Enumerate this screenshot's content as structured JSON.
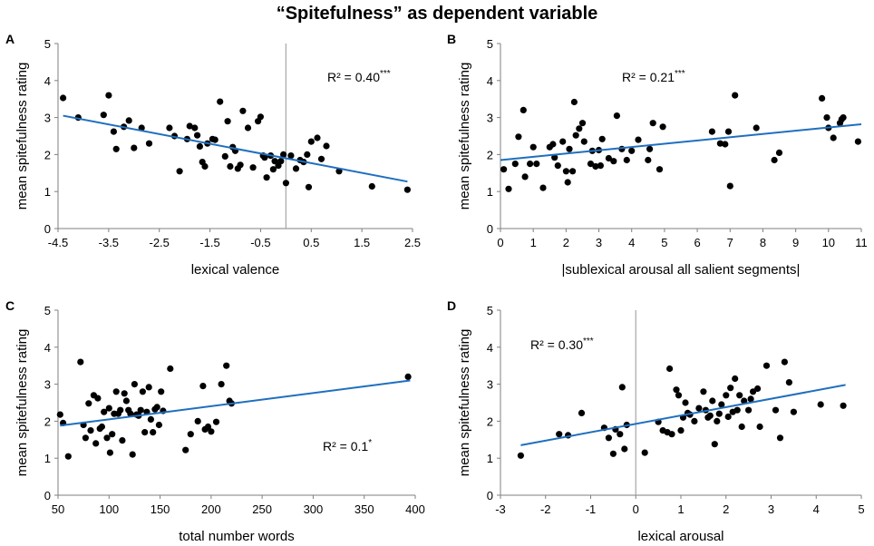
{
  "title": "“Spitefulness” as dependent variable",
  "chart_data": [
    {
      "panel": "A",
      "type": "scatter",
      "xlabel": "lexical valence",
      "ylabel": "mean spitefulness rating",
      "xlim": [
        -4.5,
        2.5
      ],
      "ylim": [
        0,
        5
      ],
      "xticks": [
        -4.5,
        -3.5,
        -2.5,
        -1.5,
        -0.5,
        0.5,
        1.5,
        2.5
      ],
      "xtick_labels": [
        "-4.5",
        "-3.5",
        "-2.5",
        "-1.5",
        "-0.5",
        "0.5",
        "1.5",
        "2.5"
      ],
      "yticks": [
        0,
        1,
        2,
        3,
        4,
        5
      ],
      "ytick_labels": [
        "0",
        "1",
        "2",
        "3",
        "4",
        "5"
      ],
      "vline": 0,
      "r2_value": "R² = 0.40",
      "r2_stars": "***",
      "r2_position": "top-right",
      "trend": {
        "x": [
          -4.4,
          2.4
        ],
        "y": [
          3.05,
          1.27
        ]
      },
      "points": [
        [
          -4.4,
          3.53
        ],
        [
          -4.1,
          3.0
        ],
        [
          -3.6,
          3.07
        ],
        [
          -3.5,
          3.6
        ],
        [
          -3.4,
          2.62
        ],
        [
          -3.35,
          2.15
        ],
        [
          -3.2,
          2.75
        ],
        [
          -3.1,
          2.92
        ],
        [
          -3.0,
          2.18
        ],
        [
          -2.85,
          2.72
        ],
        [
          -2.7,
          2.3
        ],
        [
          -2.3,
          2.72
        ],
        [
          -2.2,
          2.5
        ],
        [
          -2.1,
          1.55
        ],
        [
          -1.95,
          2.42
        ],
        [
          -1.9,
          2.77
        ],
        [
          -1.8,
          2.72
        ],
        [
          -1.75,
          2.52
        ],
        [
          -1.7,
          2.22
        ],
        [
          -1.65,
          1.8
        ],
        [
          -1.6,
          1.68
        ],
        [
          -1.55,
          2.3
        ],
        [
          -1.45,
          2.42
        ],
        [
          -1.4,
          2.4
        ],
        [
          -1.3,
          3.43
        ],
        [
          -1.2,
          1.95
        ],
        [
          -1.15,
          2.9
        ],
        [
          -1.1,
          1.68
        ],
        [
          -1.05,
          2.2
        ],
        [
          -1.0,
          2.1
        ],
        [
          -0.95,
          1.62
        ],
        [
          -0.9,
          1.72
        ],
        [
          -0.85,
          3.18
        ],
        [
          -0.75,
          2.72
        ],
        [
          -0.65,
          1.65
        ],
        [
          -0.55,
          2.9
        ],
        [
          -0.5,
          3.02
        ],
        [
          -0.45,
          1.97
        ],
        [
          -0.42,
          1.92
        ],
        [
          -0.38,
          1.38
        ],
        [
          -0.3,
          1.97
        ],
        [
          -0.25,
          1.6
        ],
        [
          -0.22,
          1.82
        ],
        [
          -0.15,
          1.7
        ],
        [
          -0.1,
          1.82
        ],
        [
          -0.05,
          2.0
        ],
        [
          0.0,
          1.23
        ],
        [
          0.1,
          1.97
        ],
        [
          0.2,
          1.62
        ],
        [
          0.28,
          1.85
        ],
        [
          0.35,
          1.8
        ],
        [
          0.42,
          2.0
        ],
        [
          0.45,
          1.12
        ],
        [
          0.5,
          2.35
        ],
        [
          0.62,
          2.45
        ],
        [
          0.7,
          1.88
        ],
        [
          0.8,
          2.23
        ],
        [
          1.05,
          1.55
        ],
        [
          1.7,
          1.14
        ],
        [
          2.4,
          1.05
        ]
      ]
    },
    {
      "panel": "B",
      "type": "scatter",
      "xlabel": "|sublexical arousal all salient segments|",
      "ylabel": "mean spitefulness rating",
      "xlim": [
        0,
        11
      ],
      "ylim": [
        0,
        5
      ],
      "xticks": [
        0,
        1,
        2,
        3,
        4,
        5,
        6,
        7,
        8,
        9,
        10,
        11
      ],
      "xtick_labels": [
        "0",
        "1",
        "2",
        "3",
        "4",
        "5",
        "6",
        "7",
        "8",
        "9",
        "10",
        "11"
      ],
      "yticks": [
        0,
        1,
        2,
        3,
        4,
        5
      ],
      "ytick_labels": [
        "0",
        "1",
        "2",
        "3",
        "4",
        "5"
      ],
      "vline": null,
      "r2_value": "R² = 0.21",
      "r2_stars": "***",
      "r2_position": "top-center",
      "trend": {
        "x": [
          0,
          11
        ],
        "y": [
          1.85,
          2.82
        ]
      },
      "points": [
        [
          0.1,
          1.6
        ],
        [
          0.25,
          1.07
        ],
        [
          0.45,
          1.75
        ],
        [
          0.55,
          2.48
        ],
        [
          0.7,
          3.2
        ],
        [
          0.75,
          1.4
        ],
        [
          0.9,
          1.75
        ],
        [
          1.0,
          2.2
        ],
        [
          1.1,
          1.75
        ],
        [
          1.3,
          1.1
        ],
        [
          1.5,
          2.2
        ],
        [
          1.6,
          2.28
        ],
        [
          1.65,
          1.92
        ],
        [
          1.75,
          1.7
        ],
        [
          1.9,
          2.35
        ],
        [
          2.0,
          1.55
        ],
        [
          2.05,
          1.25
        ],
        [
          2.1,
          2.15
        ],
        [
          2.2,
          1.55
        ],
        [
          2.25,
          3.42
        ],
        [
          2.3,
          2.52
        ],
        [
          2.4,
          2.7
        ],
        [
          2.5,
          2.85
        ],
        [
          2.55,
          2.35
        ],
        [
          2.75,
          1.75
        ],
        [
          2.8,
          2.1
        ],
        [
          2.9,
          1.68
        ],
        [
          3.0,
          2.12
        ],
        [
          3.05,
          1.7
        ],
        [
          3.1,
          2.42
        ],
        [
          3.3,
          1.9
        ],
        [
          3.45,
          1.82
        ],
        [
          3.55,
          3.05
        ],
        [
          3.7,
          2.15
        ],
        [
          3.85,
          1.85
        ],
        [
          4.0,
          2.1
        ],
        [
          4.2,
          2.4
        ],
        [
          4.5,
          1.85
        ],
        [
          4.55,
          2.15
        ],
        [
          4.65,
          2.85
        ],
        [
          4.85,
          1.6
        ],
        [
          4.95,
          2.75
        ],
        [
          6.45,
          2.62
        ],
        [
          6.7,
          2.3
        ],
        [
          6.85,
          2.28
        ],
        [
          6.95,
          2.62
        ],
        [
          7.0,
          1.15
        ],
        [
          7.15,
          3.6
        ],
        [
          7.8,
          2.72
        ],
        [
          8.35,
          1.85
        ],
        [
          8.5,
          2.05
        ],
        [
          9.8,
          3.52
        ],
        [
          9.95,
          3.0
        ],
        [
          10.0,
          2.72
        ],
        [
          10.15,
          2.45
        ],
        [
          10.35,
          2.85
        ],
        [
          10.4,
          2.95
        ],
        [
          10.45,
          3.0
        ],
        [
          10.9,
          2.35
        ]
      ]
    },
    {
      "panel": "C",
      "type": "scatter",
      "xlabel": "total number words",
      "ylabel": "mean spitefulness rating",
      "xlim": [
        50,
        400
      ],
      "ylim": [
        0,
        5
      ],
      "xticks": [
        50,
        100,
        150,
        200,
        250,
        300,
        350,
        400
      ],
      "xtick_labels": [
        "50",
        "100",
        "150",
        "200",
        "250",
        "300",
        "350",
        "400"
      ],
      "yticks": [
        0,
        1,
        2,
        3,
        4,
        5
      ],
      "ytick_labels": [
        "0",
        "1",
        "2",
        "3",
        "4",
        "5"
      ],
      "vline": null,
      "r2_value": "R² = 0.1",
      "r2_stars": "*",
      "r2_position": "bottom-center",
      "trend": {
        "x": [
          52,
          395
        ],
        "y": [
          1.88,
          3.1
        ]
      },
      "points": [
        [
          52,
          2.18
        ],
        [
          55,
          1.95
        ],
        [
          60,
          1.05
        ],
        [
          72,
          3.6
        ],
        [
          75,
          1.9
        ],
        [
          77,
          1.55
        ],
        [
          80,
          2.48
        ],
        [
          82,
          1.75
        ],
        [
          85,
          2.7
        ],
        [
          87,
          1.4
        ],
        [
          89,
          2.62
        ],
        [
          91,
          1.8
        ],
        [
          93,
          1.85
        ],
        [
          95,
          2.25
        ],
        [
          98,
          1.55
        ],
        [
          100,
          2.35
        ],
        [
          101,
          1.15
        ],
        [
          103,
          1.65
        ],
        [
          105,
          2.2
        ],
        [
          107,
          2.8
        ],
        [
          109,
          2.2
        ],
        [
          111,
          2.3
        ],
        [
          113,
          1.48
        ],
        [
          115,
          2.75
        ],
        [
          117,
          2.55
        ],
        [
          119,
          2.3
        ],
        [
          121,
          2.2
        ],
        [
          123,
          1.1
        ],
        [
          125,
          3.0
        ],
        [
          127,
          2.18
        ],
        [
          129,
          2.15
        ],
        [
          131,
          2.3
        ],
        [
          133,
          2.8
        ],
        [
          135,
          1.7
        ],
        [
          137,
          2.25
        ],
        [
          139,
          2.92
        ],
        [
          141,
          2.05
        ],
        [
          143,
          1.7
        ],
        [
          145,
          2.32
        ],
        [
          147,
          2.38
        ],
        [
          149,
          1.9
        ],
        [
          151,
          2.8
        ],
        [
          153,
          2.28
        ],
        [
          160,
          3.42
        ],
        [
          175,
          1.22
        ],
        [
          180,
          1.65
        ],
        [
          187,
          2.0
        ],
        [
          192,
          2.95
        ],
        [
          194,
          1.78
        ],
        [
          197,
          1.85
        ],
        [
          200,
          1.72
        ],
        [
          205,
          1.98
        ],
        [
          210,
          3.0
        ],
        [
          215,
          3.5
        ],
        [
          218,
          2.55
        ],
        [
          220,
          2.48
        ],
        [
          393,
          3.2
        ]
      ]
    },
    {
      "panel": "D",
      "type": "scatter",
      "xlabel": "lexical arousal",
      "ylabel": "mean spitefulness rating",
      "xlim": [
        -3,
        5
      ],
      "ylim": [
        0,
        5
      ],
      "xticks": [
        -3,
        -2,
        -1,
        0,
        1,
        2,
        3,
        4,
        5
      ],
      "xtick_labels": [
        "-3",
        "-2",
        "-1",
        "0",
        "1",
        "2",
        "3",
        "4",
        "5"
      ],
      "yticks": [
        0,
        1,
        2,
        3,
        4,
        5
      ],
      "ytick_labels": [
        "0",
        "1",
        "2",
        "3",
        "4",
        "5"
      ],
      "vline": 0,
      "r2_value": "R² = 0.30",
      "r2_stars": "***",
      "r2_position": "top-left",
      "trend": {
        "x": [
          -2.55,
          4.65
        ],
        "y": [
          1.35,
          2.98
        ]
      },
      "points": [
        [
          -2.55,
          1.07
        ],
        [
          -1.7,
          1.65
        ],
        [
          -1.5,
          1.62
        ],
        [
          -1.2,
          2.22
        ],
        [
          -0.7,
          1.82
        ],
        [
          -0.6,
          1.55
        ],
        [
          -0.5,
          1.12
        ],
        [
          -0.45,
          1.78
        ],
        [
          -0.35,
          1.65
        ],
        [
          -0.3,
          2.92
        ],
        [
          -0.25,
          1.25
        ],
        [
          -0.2,
          1.9
        ],
        [
          0.2,
          1.15
        ],
        [
          0.5,
          1.98
        ],
        [
          0.6,
          1.75
        ],
        [
          0.7,
          1.7
        ],
        [
          0.75,
          3.42
        ],
        [
          0.8,
          1.65
        ],
        [
          0.9,
          2.85
        ],
        [
          0.95,
          2.7
        ],
        [
          1.0,
          1.75
        ],
        [
          1.05,
          2.1
        ],
        [
          1.1,
          2.5
        ],
        [
          1.15,
          2.22
        ],
        [
          1.2,
          2.18
        ],
        [
          1.3,
          2.0
        ],
        [
          1.4,
          2.35
        ],
        [
          1.5,
          2.8
        ],
        [
          1.55,
          2.3
        ],
        [
          1.6,
          2.1
        ],
        [
          1.65,
          2.15
        ],
        [
          1.7,
          2.55
        ],
        [
          1.75,
          1.38
        ],
        [
          1.8,
          2.0
        ],
        [
          1.85,
          2.2
        ],
        [
          1.9,
          2.45
        ],
        [
          2.0,
          2.7
        ],
        [
          2.05,
          2.12
        ],
        [
          2.1,
          2.9
        ],
        [
          2.15,
          2.25
        ],
        [
          2.2,
          3.15
        ],
        [
          2.25,
          2.3
        ],
        [
          2.3,
          2.7
        ],
        [
          2.35,
          1.85
        ],
        [
          2.4,
          2.55
        ],
        [
          2.5,
          2.3
        ],
        [
          2.55,
          2.6
        ],
        [
          2.6,
          2.8
        ],
        [
          2.7,
          2.88
        ],
        [
          2.75,
          1.85
        ],
        [
          2.9,
          3.5
        ],
        [
          3.1,
          2.3
        ],
        [
          3.2,
          1.55
        ],
        [
          3.3,
          3.6
        ],
        [
          3.4,
          3.05
        ],
        [
          3.5,
          2.25
        ],
        [
          4.1,
          2.45
        ],
        [
          4.6,
          2.42
        ]
      ]
    }
  ]
}
